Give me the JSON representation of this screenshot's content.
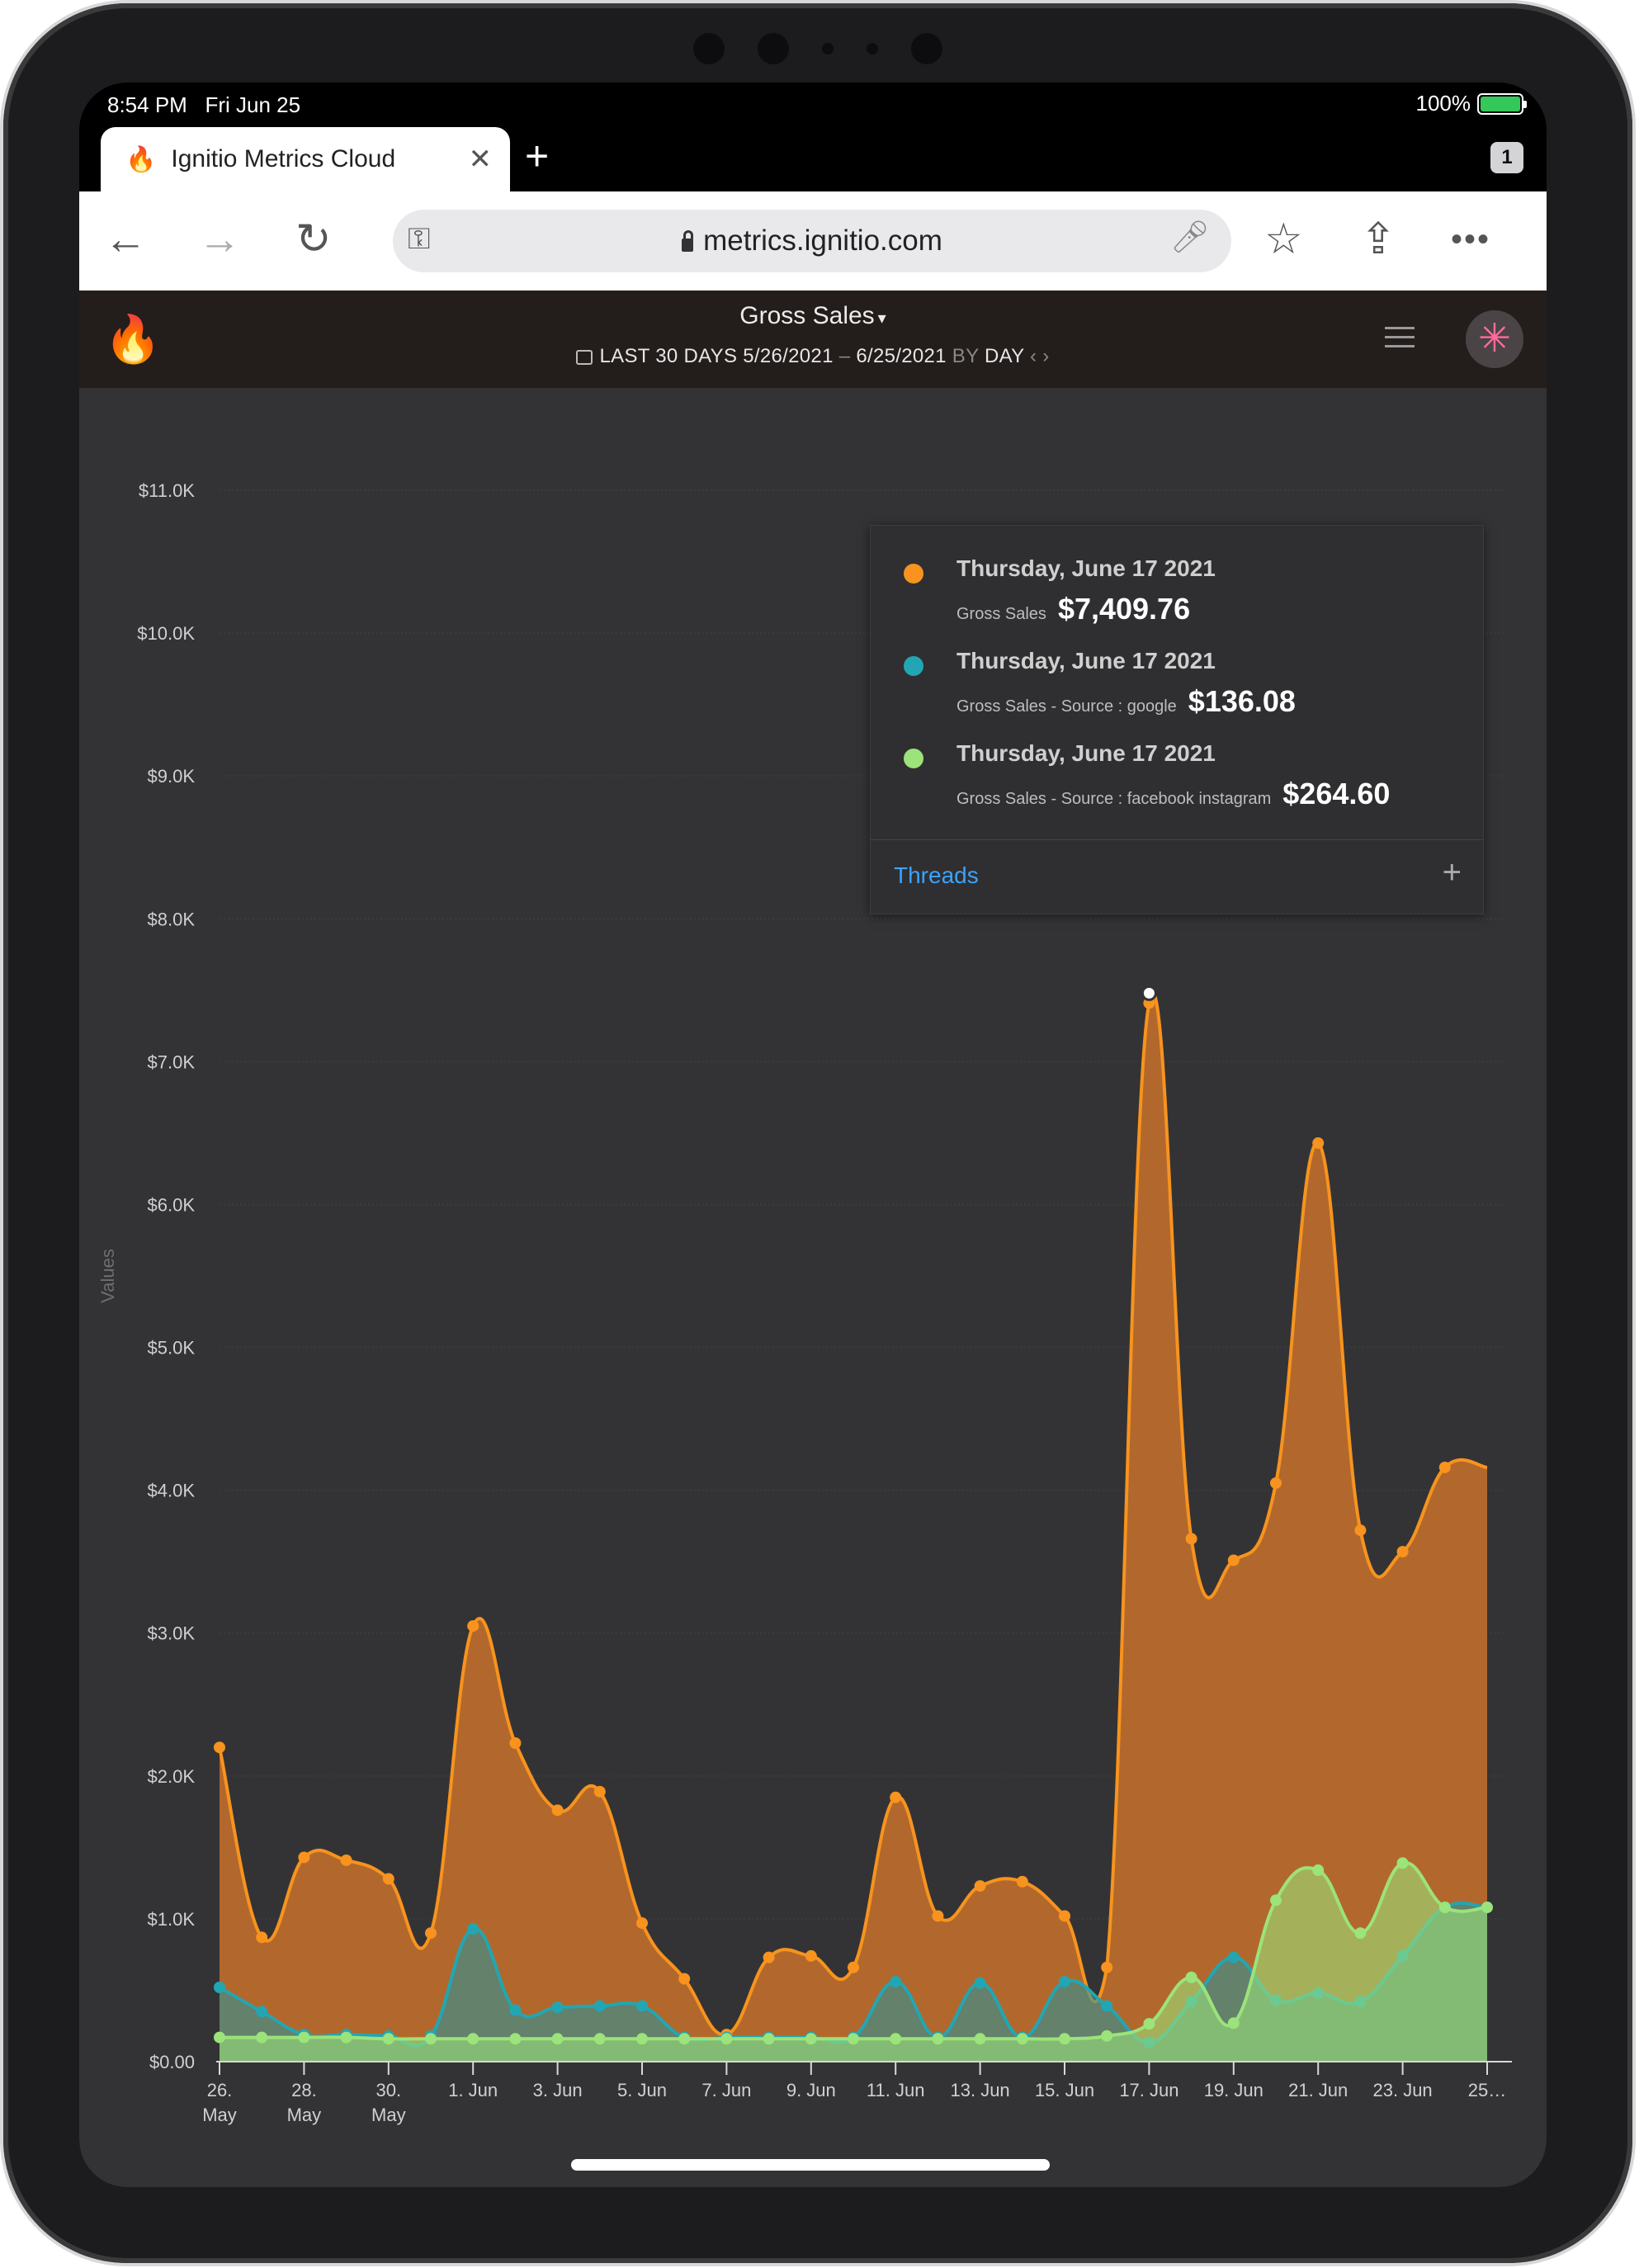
{
  "status": {
    "time": "8:54 PM",
    "date": "Fri Jun 25",
    "battery": "100%"
  },
  "browser": {
    "tab_title": "Ignitio Metrics Cloud",
    "tab_count": "1",
    "url": "metrics.ignitio.com"
  },
  "app": {
    "metric": "Gross Sales",
    "range_label": "LAST 30 DAYS",
    "start": "5/26/2021",
    "dash": "–",
    "end": "6/25/2021",
    "by": "BY",
    "granularity": "DAY"
  },
  "tooltip": {
    "entries": [
      {
        "date": "Thursday, June 17 2021",
        "series": "Gross Sales",
        "value": "$7,409.76",
        "color": "#f7931e"
      },
      {
        "date": "Thursday, June 17 2021",
        "series": "Gross Sales - Source : google",
        "value": "$136.08",
        "color": "#22a6b3"
      },
      {
        "date": "Thursday, June 17 2021",
        "series": "Gross Sales - Source : facebook instagram",
        "value": "$264.60",
        "color": "#9be37a"
      }
    ],
    "threads": "Threads",
    "plus": "+"
  },
  "chart_data": {
    "type": "area",
    "ylabel": "Values",
    "ylim": [
      0,
      11000
    ],
    "yticks": [
      "$0.00",
      "$1.0K",
      "$2.0K",
      "$3.0K",
      "$4.0K",
      "$5.0K",
      "$6.0K",
      "$7.0K",
      "$8.0K",
      "$9.0K",
      "$10.0K",
      "$11.0K"
    ],
    "xtick_labels": [
      [
        "26.",
        "May"
      ],
      [
        "28.",
        "May"
      ],
      [
        "30.",
        "May"
      ],
      [
        "1. Jun"
      ],
      [
        "3. Jun"
      ],
      [
        "5. Jun"
      ],
      [
        "7. Jun"
      ],
      [
        "9. Jun"
      ],
      [
        "11. Jun"
      ],
      [
        "13. Jun"
      ],
      [
        "15. Jun"
      ],
      [
        "17. Jun"
      ],
      [
        "19. Jun"
      ],
      [
        "21. Jun"
      ],
      [
        "23. Jun"
      ],
      [
        "25…"
      ]
    ],
    "x": [
      "5/26",
      "5/27",
      "5/28",
      "5/29",
      "5/30",
      "5/31",
      "6/1",
      "6/2",
      "6/3",
      "6/4",
      "6/5",
      "6/6",
      "6/7",
      "6/8",
      "6/9",
      "6/10",
      "6/11",
      "6/12",
      "6/13",
      "6/14",
      "6/15",
      "6/16",
      "6/17",
      "6/18",
      "6/19",
      "6/20",
      "6/21",
      "6/22",
      "6/23",
      "6/24",
      "6/25"
    ],
    "series": [
      {
        "name": "Gross Sales",
        "color": "#f7931e",
        "values": [
          2200,
          870,
          1430,
          1410,
          1280,
          900,
          3050,
          2230,
          1760,
          1890,
          970,
          580,
          190,
          730,
          740,
          660,
          1850,
          1020,
          1230,
          1260,
          1020,
          660,
          7410,
          3660,
          3510,
          4050,
          6430,
          3720,
          3570,
          4160,
          4160
        ]
      },
      {
        "name": "Gross Sales - Source : google",
        "color": "#22a6b3",
        "values": [
          520,
          350,
          190,
          190,
          180,
          180,
          930,
          360,
          380,
          390,
          390,
          170,
          170,
          170,
          170,
          170,
          560,
          170,
          550,
          170,
          560,
          390,
          136,
          420,
          730,
          430,
          480,
          420,
          740,
          1080,
          1080
        ]
      },
      {
        "name": "Gross Sales - Source : facebook instagram",
        "color": "#9be37a",
        "values": [
          170,
          170,
          170,
          170,
          160,
          160,
          160,
          160,
          160,
          160,
          160,
          160,
          160,
          160,
          160,
          160,
          160,
          160,
          160,
          160,
          160,
          180,
          265,
          590,
          270,
          1130,
          1340,
          900,
          1390,
          1080,
          1080
        ]
      }
    ]
  }
}
